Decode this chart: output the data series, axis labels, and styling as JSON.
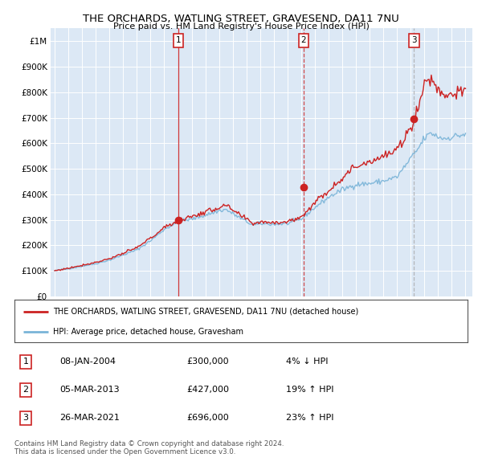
{
  "title": "THE ORCHARDS, WATLING STREET, GRAVESEND, DA11 7NU",
  "subtitle": "Price paid vs. HM Land Registry's House Price Index (HPI)",
  "ylim": [
    0,
    1050000
  ],
  "xlim_start": 1994.7,
  "xlim_end": 2025.5,
  "yticks": [
    0,
    100000,
    200000,
    300000,
    400000,
    500000,
    600000,
    700000,
    800000,
    900000,
    1000000
  ],
  "ytick_labels": [
    "£0",
    "£100K",
    "£200K",
    "£300K",
    "£400K",
    "£500K",
    "£600K",
    "£700K",
    "£800K",
    "£900K",
    "£1M"
  ],
  "hpi_color": "#7ab4d8",
  "price_color": "#cc2222",
  "vline_color_solid": "#cc2222",
  "vline_color_dashed": "#cc2222",
  "vline_color_grey": "#aaaaaa",
  "sales": [
    {
      "date_x": 2004.03,
      "price": 300000,
      "label": "1",
      "vline_style": "solid"
    },
    {
      "date_x": 2013.18,
      "price": 427000,
      "label": "2",
      "vline_style": "dashed"
    },
    {
      "date_x": 2021.23,
      "price": 696000,
      "label": "3",
      "vline_style": "dashed_grey"
    }
  ],
  "legend_house_label": "THE ORCHARDS, WATLING STREET, GRAVESEND, DA11 7NU (detached house)",
  "legend_hpi_label": "HPI: Average price, detached house, Gravesham",
  "table_rows": [
    {
      "num": "1",
      "date": "08-JAN-2004",
      "price": "£300,000",
      "pct": "4% ↓ HPI"
    },
    {
      "num": "2",
      "date": "05-MAR-2013",
      "price": "£427,000",
      "pct": "19% ↑ HPI"
    },
    {
      "num": "3",
      "date": "26-MAR-2021",
      "price": "£696,000",
      "pct": "23% ↑ HPI"
    }
  ],
  "footer": "Contains HM Land Registry data © Crown copyright and database right 2024.\nThis data is licensed under the Open Government Licence v3.0.",
  "background_color": "#ffffff",
  "plot_bg_color": "#dce8f5",
  "hpi_key_points_x": [
    1995.0,
    1996.0,
    1997.0,
    1998.0,
    1999.0,
    2000.0,
    2001.0,
    2002.0,
    2003.0,
    2004.0,
    2005.0,
    2006.0,
    2007.0,
    2007.5,
    2008.5,
    2009.5,
    2010.0,
    2011.0,
    2012.0,
    2013.0,
    2014.0,
    2015.0,
    2016.0,
    2017.0,
    2018.0,
    2019.0,
    2020.0,
    2021.0,
    2021.5,
    2022.0,
    2022.5,
    2023.0,
    2023.5,
    2024.0,
    2024.5,
    2025.0
  ],
  "hpi_key_points_y": [
    100000,
    108000,
    118000,
    128000,
    142000,
    162000,
    182000,
    218000,
    262000,
    292000,
    302000,
    318000,
    335000,
    340000,
    308000,
    278000,
    285000,
    282000,
    285000,
    302000,
    348000,
    388000,
    418000,
    438000,
    442000,
    452000,
    468000,
    540000,
    575000,
    620000,
    640000,
    625000,
    618000,
    625000,
    630000,
    635000
  ],
  "prop_key_points_x": [
    1995.0,
    1996.0,
    1997.0,
    1998.0,
    1999.0,
    2000.0,
    2001.0,
    2002.0,
    2003.0,
    2004.0,
    2005.0,
    2006.0,
    2007.0,
    2007.5,
    2008.5,
    2009.5,
    2010.0,
    2011.0,
    2012.0,
    2013.0,
    2014.0,
    2015.0,
    2016.0,
    2017.0,
    2018.0,
    2019.0,
    2020.0,
    2021.0,
    2021.5,
    2022.0,
    2022.5,
    2023.0,
    2023.5,
    2024.0,
    2024.5,
    2025.0
  ],
  "prop_key_points_y": [
    100000,
    110000,
    122000,
    133000,
    148000,
    168000,
    190000,
    228000,
    268000,
    298000,
    312000,
    330000,
    348000,
    355000,
    318000,
    285000,
    292000,
    290000,
    292000,
    310000,
    368000,
    415000,
    465000,
    510000,
    530000,
    548000,
    572000,
    660000,
    730000,
    835000,
    855000,
    810000,
    790000,
    795000,
    800000,
    795000
  ]
}
